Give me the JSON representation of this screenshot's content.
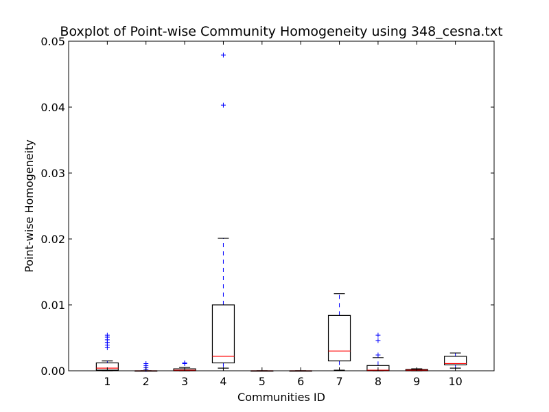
{
  "chart_data": {
    "type": "box",
    "title": "Boxplot of Point-wise Community Homogeneity using 348_cesna.txt",
    "xlabel": "Communities ID",
    "ylabel": "Point-wise Homogeneity",
    "ylim": [
      0,
      0.05
    ],
    "yticks": [
      0.0,
      0.01,
      0.02,
      0.03,
      0.04,
      0.05
    ],
    "ytick_labels": [
      "0.00",
      "0.01",
      "0.02",
      "0.03",
      "0.04",
      "0.05"
    ],
    "categories": [
      "1",
      "2",
      "3",
      "4",
      "5",
      "6",
      "7",
      "8",
      "9",
      "10"
    ],
    "grid": false,
    "colors": {
      "box": "#000000",
      "median": "#ff0000",
      "whisker": "#0000ff",
      "flier": "#0000ff",
      "cap": "#000000"
    },
    "boxes": [
      {
        "id": "1",
        "whislo": 0.0,
        "q1": 0.0001,
        "med": 0.0004,
        "q3": 0.0012,
        "whishi": 0.0015,
        "fliers": [
          0.0035,
          0.0039,
          0.0043,
          0.0047,
          0.0051,
          0.0054
        ]
      },
      {
        "id": "2",
        "whislo": 0.0,
        "q1": 0.0,
        "med": 0.0,
        "q3": 0.0,
        "whishi": 0.0,
        "fliers": [
          0.0002,
          0.0005,
          0.0008,
          0.0011
        ]
      },
      {
        "id": "3",
        "whislo": 0.0,
        "q1": 0.0,
        "med": 0.0001,
        "q3": 0.0003,
        "whishi": 0.0005,
        "fliers": [
          0.0011,
          0.0012
        ]
      },
      {
        "id": "4",
        "whislo": 0.0004,
        "q1": 0.0012,
        "med": 0.0022,
        "q3": 0.01,
        "whishi": 0.0201,
        "fliers": [
          0.0403,
          0.0479
        ]
      },
      {
        "id": "5",
        "whislo": 0.0,
        "q1": 0.0,
        "med": 0.0,
        "q3": 0.0,
        "whishi": 0.0,
        "fliers": []
      },
      {
        "id": "6",
        "whislo": 0.0,
        "q1": 0.0,
        "med": 0.0,
        "q3": 0.0,
        "whishi": 0.0,
        "fliers": []
      },
      {
        "id": "7",
        "whislo": 0.0001,
        "q1": 0.0015,
        "med": 0.003,
        "q3": 0.0084,
        "whishi": 0.0117,
        "fliers": []
      },
      {
        "id": "8",
        "whislo": 0.0,
        "q1": 0.0,
        "med": 0.0001,
        "q3": 0.0008,
        "whishi": 0.002,
        "fliers": [
          0.0024,
          0.0046,
          0.0054
        ]
      },
      {
        "id": "9",
        "whislo": 0.0,
        "q1": 0.0,
        "med": 0.0001,
        "q3": 0.0002,
        "whishi": 0.0003,
        "fliers": []
      },
      {
        "id": "10",
        "whislo": 0.0004,
        "q1": 0.0009,
        "med": 0.0011,
        "q3": 0.0022,
        "whishi": 0.0027,
        "fliers": []
      }
    ]
  }
}
